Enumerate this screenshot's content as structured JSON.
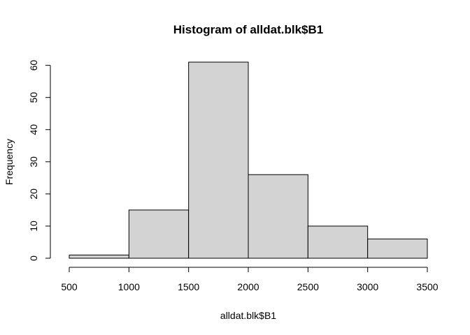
{
  "chart_data": {
    "type": "bar",
    "subtype": "histogram",
    "title": "Histogram of alldat.blk$B1",
    "xlabel": "alldat.blk$B1",
    "ylabel": "Frequency",
    "bins": [
      {
        "from": 500,
        "to": 1000,
        "count": 1
      },
      {
        "from": 1000,
        "to": 1500,
        "count": 15
      },
      {
        "from": 1500,
        "to": 2000,
        "count": 61
      },
      {
        "from": 2000,
        "to": 2500,
        "count": 26
      },
      {
        "from": 2500,
        "to": 3000,
        "count": 10
      },
      {
        "from": 3000,
        "to": 3500,
        "count": 6
      }
    ],
    "xlim": [
      500,
      3500
    ],
    "ylim": [
      0,
      61
    ],
    "xticks": [
      500,
      1000,
      1500,
      2000,
      2500,
      3000,
      3500
    ],
    "yticks": [
      0,
      10,
      20,
      30,
      40,
      50,
      60
    ],
    "bar_color": "#D3D3D3",
    "border_color": "#000000",
    "grid": false,
    "legend": "none"
  }
}
